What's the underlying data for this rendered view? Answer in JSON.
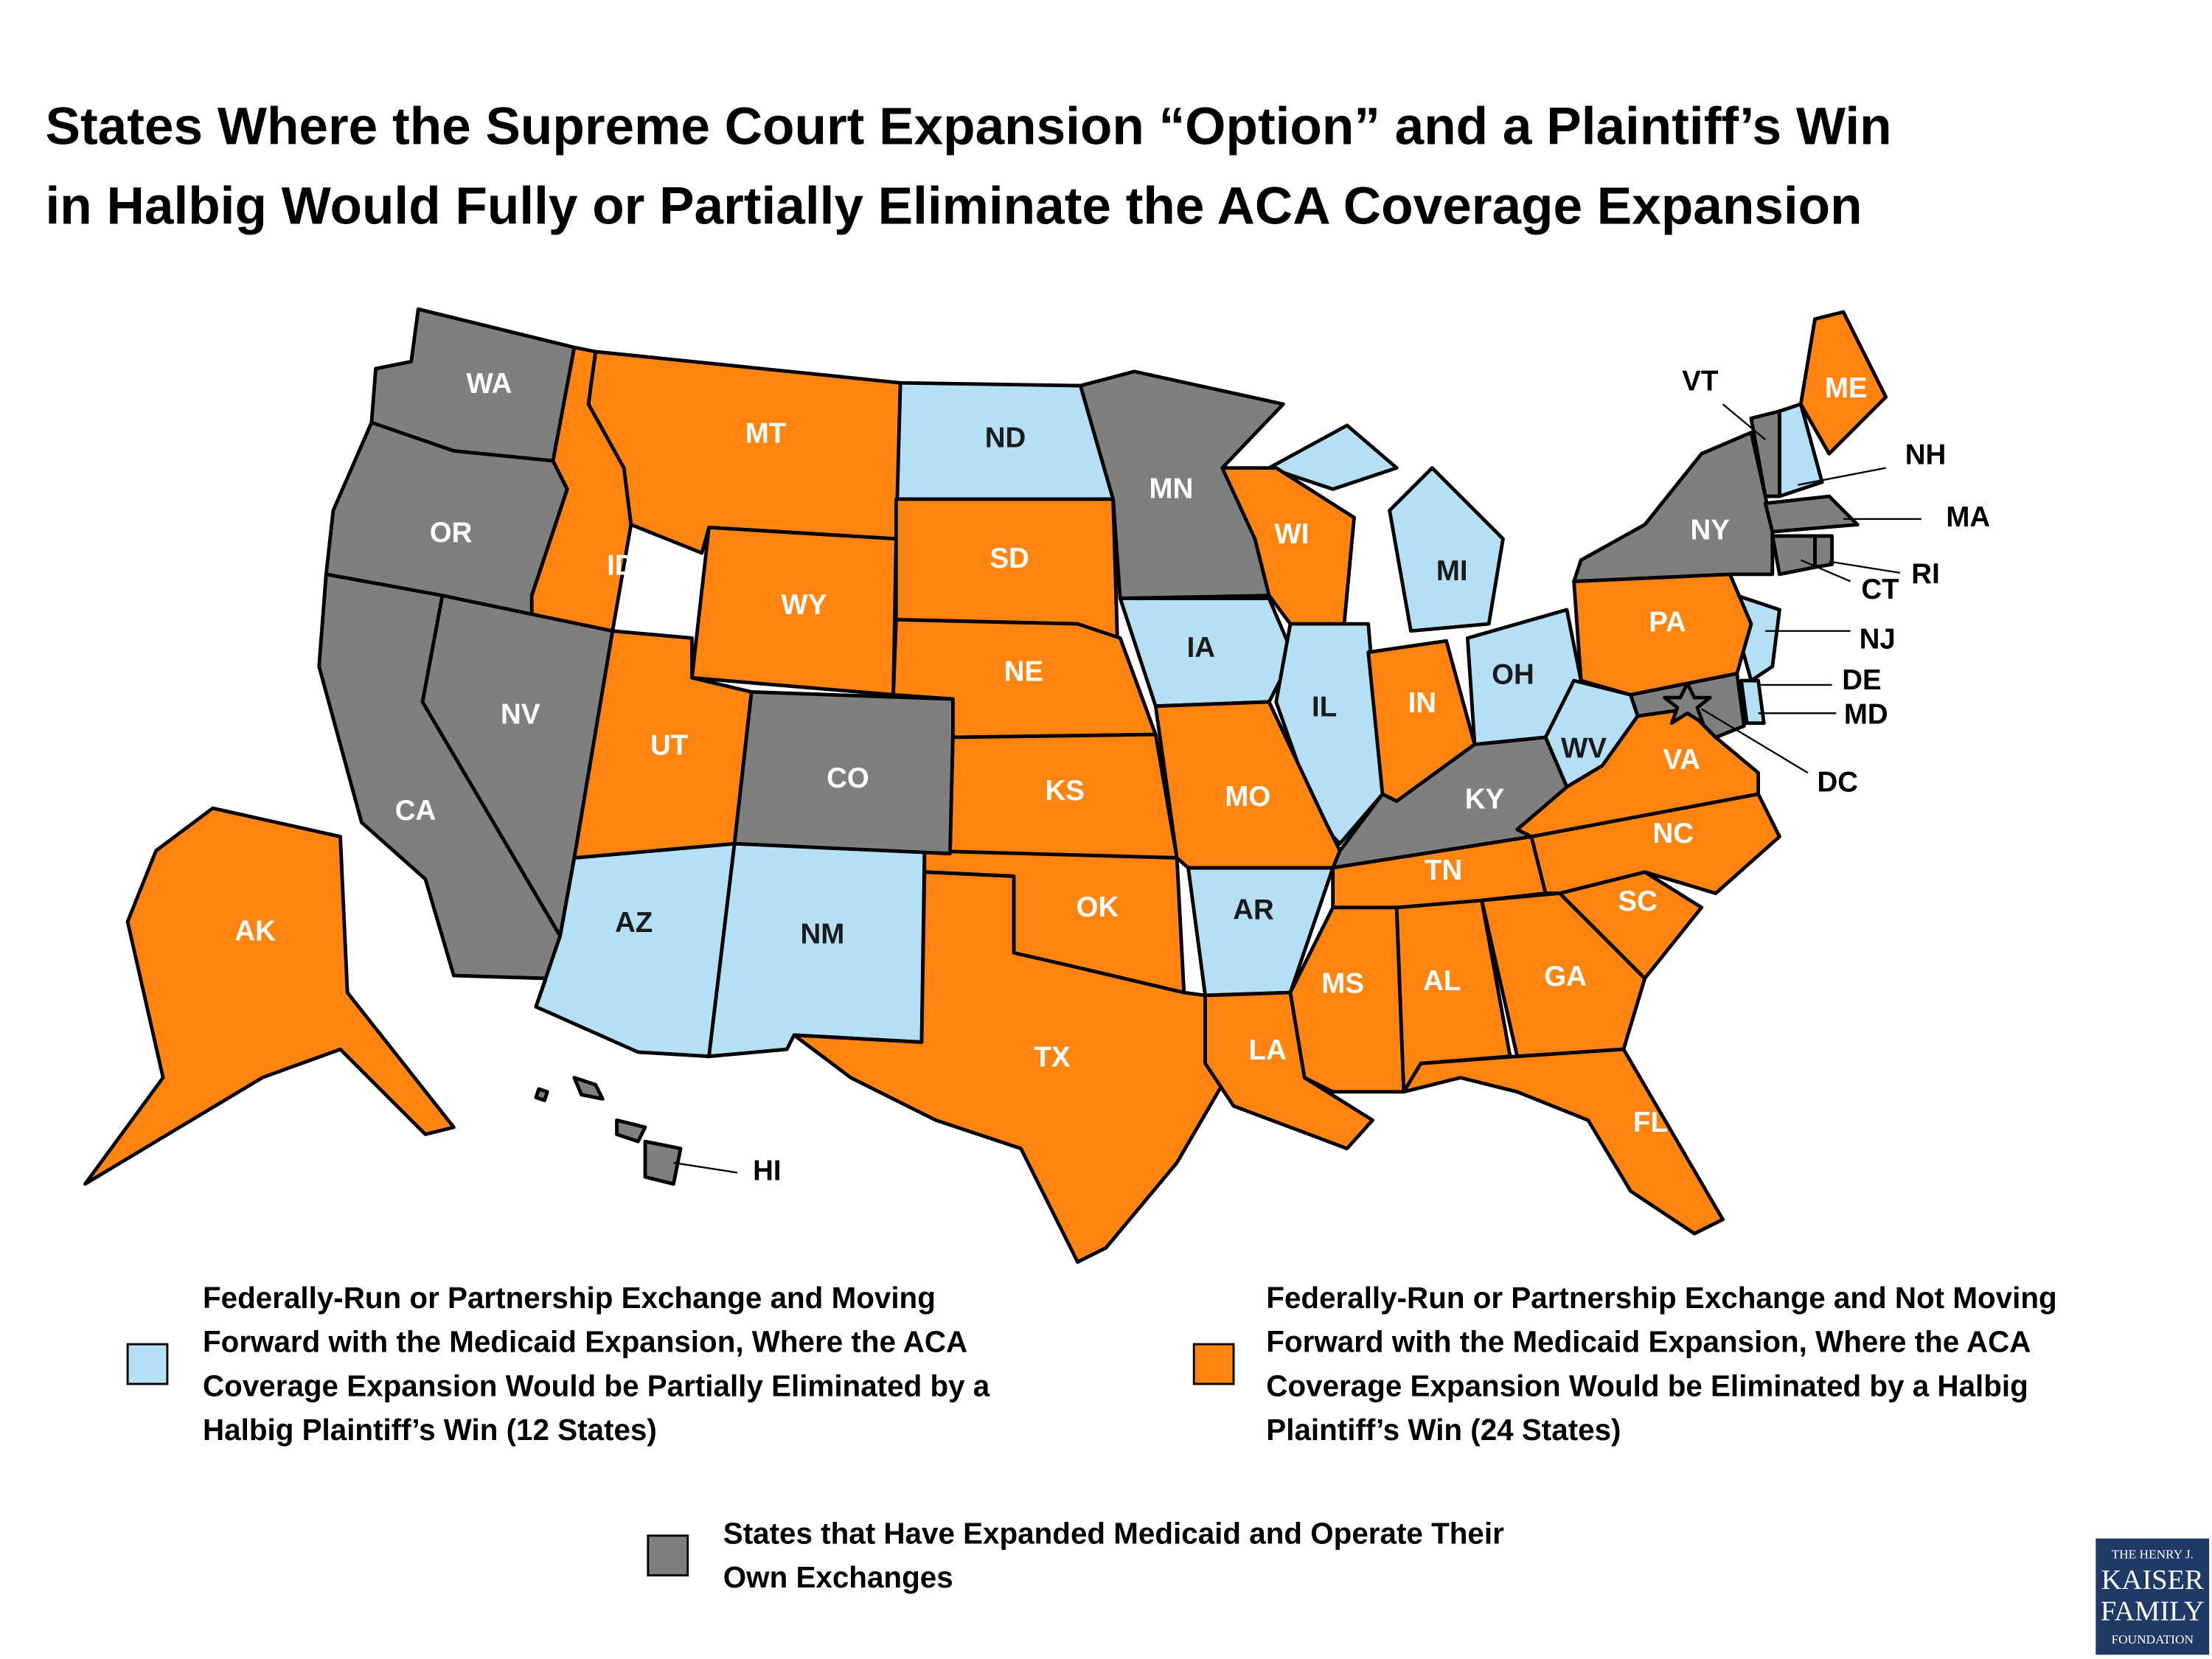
{
  "title": [
    "States Where the Supreme Court Expansion “Option” and a Plaintiff’s Win",
    "in Halbig Would Fully or Partially Eliminate the ACA Coverage Expansion"
  ],
  "groups": [
    {
      "color": "#b4dff5",
      "label": [
        "Federally-Run or Partnership Exchange and Moving",
        "Forward with the Medicaid Expansion, Where  the ACA",
        "Coverage Expansion Would be Partially Eliminated by a",
        "Halbig Plaintiff’s Win (12 States)"
      ],
      "states": [
        "ND",
        "IA",
        "IL",
        "MI",
        "OH",
        "WV",
        "AR",
        "AZ",
        "NM",
        "NH",
        "NJ",
        "DE"
      ]
    },
    {
      "color": "#ff8410",
      "label": [
        "Federally-Run or Partnership Exchange and Not Moving",
        "Forward with the Medicaid Expansion, Where the ACA",
        "Coverage Expansion Would be Eliminated by a Halbig",
        "Plaintiff’s Win (24 States)"
      ],
      "states": [
        "MT",
        "ID",
        "WY",
        "UT",
        "SD",
        "NE",
        "KS",
        "OK",
        "TX",
        "MO",
        "LA",
        "MS",
        "AL",
        "TN",
        "GA",
        "FL",
        "SC",
        "NC",
        "VA",
        "PA",
        "IN",
        "WI",
        "ME",
        "AK"
      ]
    },
    {
      "color": "#7f7f7f",
      "label": [
        "States that Have Expanded Medicaid and Operate Their",
        "Own Exchanges"
      ],
      "states": [
        "WA",
        "OR",
        "CA",
        "NV",
        "CO",
        "MN",
        "KY",
        "NY",
        "VT",
        "MA",
        "CT",
        "RI",
        "MD",
        "DC",
        "HI"
      ]
    }
  ],
  "logo": [
    "THE HENRY J.",
    "KAISER",
    "FAMILY",
    "FOUNDATION"
  ]
}
